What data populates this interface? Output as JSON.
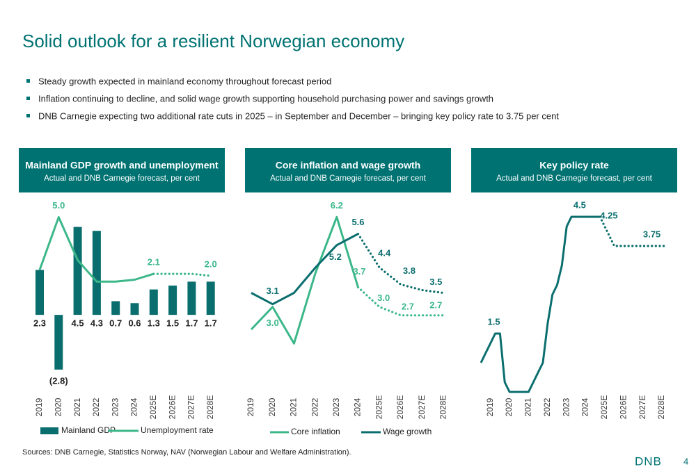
{
  "slide": {
    "title": "Solid outlook for a resilient Norwegian economy",
    "bullets": [
      "Steady growth expected in mainland economy throughout forecast period",
      "Inflation continuing to decline, and solid wage growth supporting household purchasing power and savings growth",
      "DNB Carnegie expecting two additional rate cuts in 2025 – in September and December – bringing key policy rate to 3.75 per cent"
    ],
    "sources": "Sources: DNB Carnegie, Statistics Norway, NAV (Norwegian Labour and Welfare Administration).",
    "logo": "DNB",
    "page_number": "4"
  },
  "chart_data": [
    {
      "type": "bar_line",
      "title": "Mainland GDP growth and unemployment",
      "subtitle": "Actual and DNB Carnegie forecast, per cent",
      "categories": [
        "2019",
        "2020",
        "2021",
        "2022",
        "2023",
        "2024",
        "2025E",
        "2026E",
        "2027E",
        "2028E"
      ],
      "ylim": [
        -3.8,
        5.8
      ],
      "series": [
        {
          "name": "Mainland GDP",
          "type": "bar",
          "color": "#0b6e6e",
          "values": [
            2.3,
            -2.8,
            4.5,
            4.3,
            0.7,
            0.6,
            1.3,
            1.5,
            1.7,
            1.7
          ],
          "value_labels": [
            "2.3",
            "(2.8)",
            "4.5",
            "4.3",
            "0.7",
            "0.6",
            "1.3",
            "1.5",
            "1.7",
            "1.7"
          ]
        },
        {
          "name": "Unemployment rate",
          "type": "line",
          "color": "#3bb78a",
          "dashed_from": 6,
          "values": [
            2.3,
            5.0,
            2.8,
            1.7,
            1.7,
            1.8,
            2.1,
            2.1,
            2.1,
            2.0
          ],
          "value_labels": [
            null,
            "5.0",
            null,
            null,
            null,
            null,
            "2.1",
            null,
            null,
            "2.0"
          ]
        }
      ]
    },
    {
      "type": "line",
      "title": "Core inflation and wage growth",
      "subtitle": "Actual and DNB Carnegie forecast, per cent",
      "categories": [
        "2019",
        "2020",
        "2021",
        "2022",
        "2023",
        "2024",
        "2025E",
        "2026E",
        "2027E",
        "2028E"
      ],
      "ylim": [
        0,
        7
      ],
      "series": [
        {
          "name": "Core inflation",
          "color": "#3bb78a",
          "dashed_from": 5,
          "values": [
            2.2,
            3.0,
            1.7,
            4.2,
            6.2,
            3.7,
            3.0,
            2.7,
            2.7,
            2.7
          ],
          "value_labels": [
            null,
            "3.0",
            null,
            null,
            "6.2",
            "3.7",
            "3.0",
            "2.7",
            null,
            "2.7"
          ]
        },
        {
          "name": "Wage growth",
          "color": "#0b6e6e",
          "dashed_from": 5,
          "values": [
            3.5,
            3.1,
            3.5,
            4.4,
            5.2,
            5.6,
            4.4,
            3.8,
            3.6,
            3.5
          ],
          "value_labels": [
            null,
            "3.1",
            null,
            null,
            "5.2",
            "5.6",
            "4.4",
            "3.8",
            null,
            "3.5"
          ]
        }
      ]
    },
    {
      "type": "line",
      "title": "Key policy rate",
      "subtitle": "Actual and DNB Carnegie forecast, per cent",
      "x": [
        2019.0,
        2019.25,
        2019.5,
        2019.75,
        2020.0,
        2020.25,
        2020.5,
        2020.75,
        2021.0,
        2021.25,
        2021.5,
        2021.75,
        2022.0,
        2022.25,
        2022.5,
        2022.75,
        2023.0,
        2023.25,
        2023.5,
        2023.75,
        2024.0,
        2024.25,
        2024.5,
        2024.75,
        2025.0,
        2025.25,
        2025.5,
        2025.75,
        2026.0,
        2026.25,
        2026.5,
        2026.75,
        2027.0,
        2027.25,
        2027.5,
        2027.75,
        2028.0,
        2028.25,
        2028.5,
        2028.75
      ],
      "xlim": [
        2019.0,
        2028.9
      ],
      "xticks": [
        {
          "value": 2019.5,
          "label": "2019"
        },
        {
          "value": 2020.5,
          "label": "2020"
        },
        {
          "value": 2021.5,
          "label": "2021"
        },
        {
          "value": 2022.5,
          "label": "2022"
        },
        {
          "value": 2023.5,
          "label": "2023"
        },
        {
          "value": 2024.5,
          "label": "2024"
        },
        {
          "value": 2025.5,
          "label": "2025E"
        },
        {
          "value": 2026.5,
          "label": "2026E"
        },
        {
          "value": 2027.5,
          "label": "2027E"
        },
        {
          "value": 2028.5,
          "label": "2028E"
        }
      ],
      "ylim": [
        0,
        5
      ],
      "series": [
        {
          "name": "Key policy rate",
          "color": "#0b6e6e",
          "dashed_from": 25,
          "values": [
            0.75,
            1.0,
            1.25,
            1.5,
            1.5,
            0.25,
            0,
            0,
            0,
            0,
            0,
            0.25,
            0.5,
            0.75,
            1.75,
            2.5,
            2.75,
            3.25,
            4.25,
            4.5,
            4.5,
            4.5,
            4.5,
            4.5,
            4.5,
            4.5,
            4.25,
            4.0,
            3.75,
            3.75,
            3.75,
            3.75,
            3.75,
            3.75,
            3.75,
            3.75,
            3.75,
            3.75,
            3.75,
            3.75
          ],
          "value_labels": [
            null,
            null,
            null,
            "1.5",
            null,
            null,
            null,
            null,
            null,
            null,
            null,
            null,
            null,
            null,
            null,
            null,
            null,
            null,
            null,
            null,
            "4.5",
            null,
            null,
            null,
            null,
            null,
            "4.25",
            null,
            null,
            null,
            null,
            null,
            null,
            null,
            null,
            "3.75",
            null,
            null,
            null,
            null
          ]
        }
      ]
    }
  ]
}
